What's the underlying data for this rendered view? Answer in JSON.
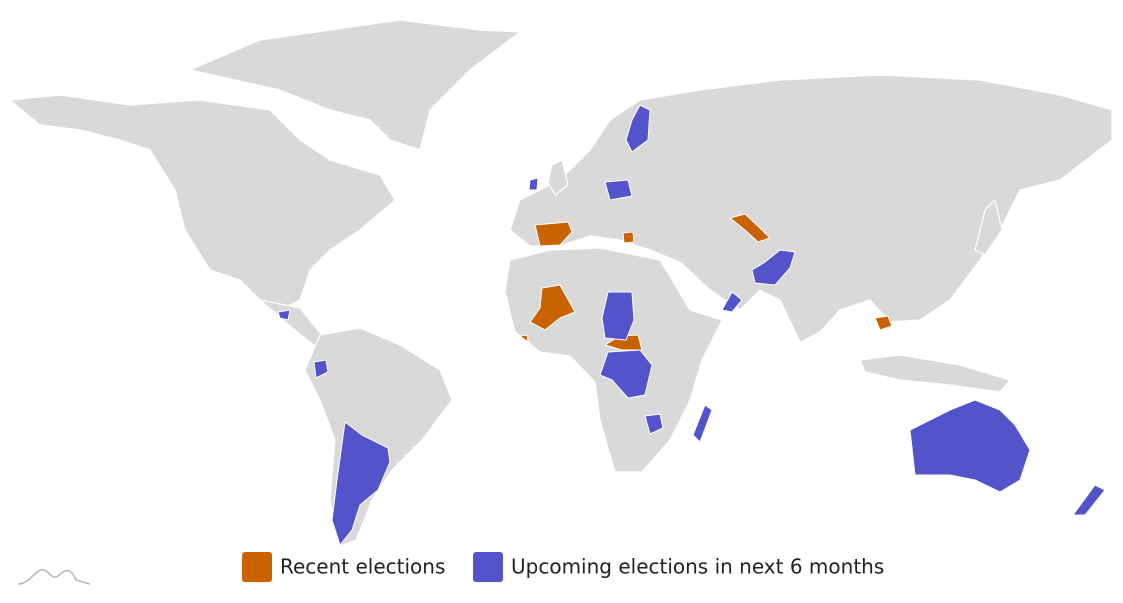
{
  "legend": {
    "items": [
      {
        "name": "Recent elections",
        "color": "#c96200"
      },
      {
        "name": "Upcoming elections in next 6 months",
        "color": "#5353cc"
      }
    ]
  },
  "land_color": "#d9d9d9"
}
